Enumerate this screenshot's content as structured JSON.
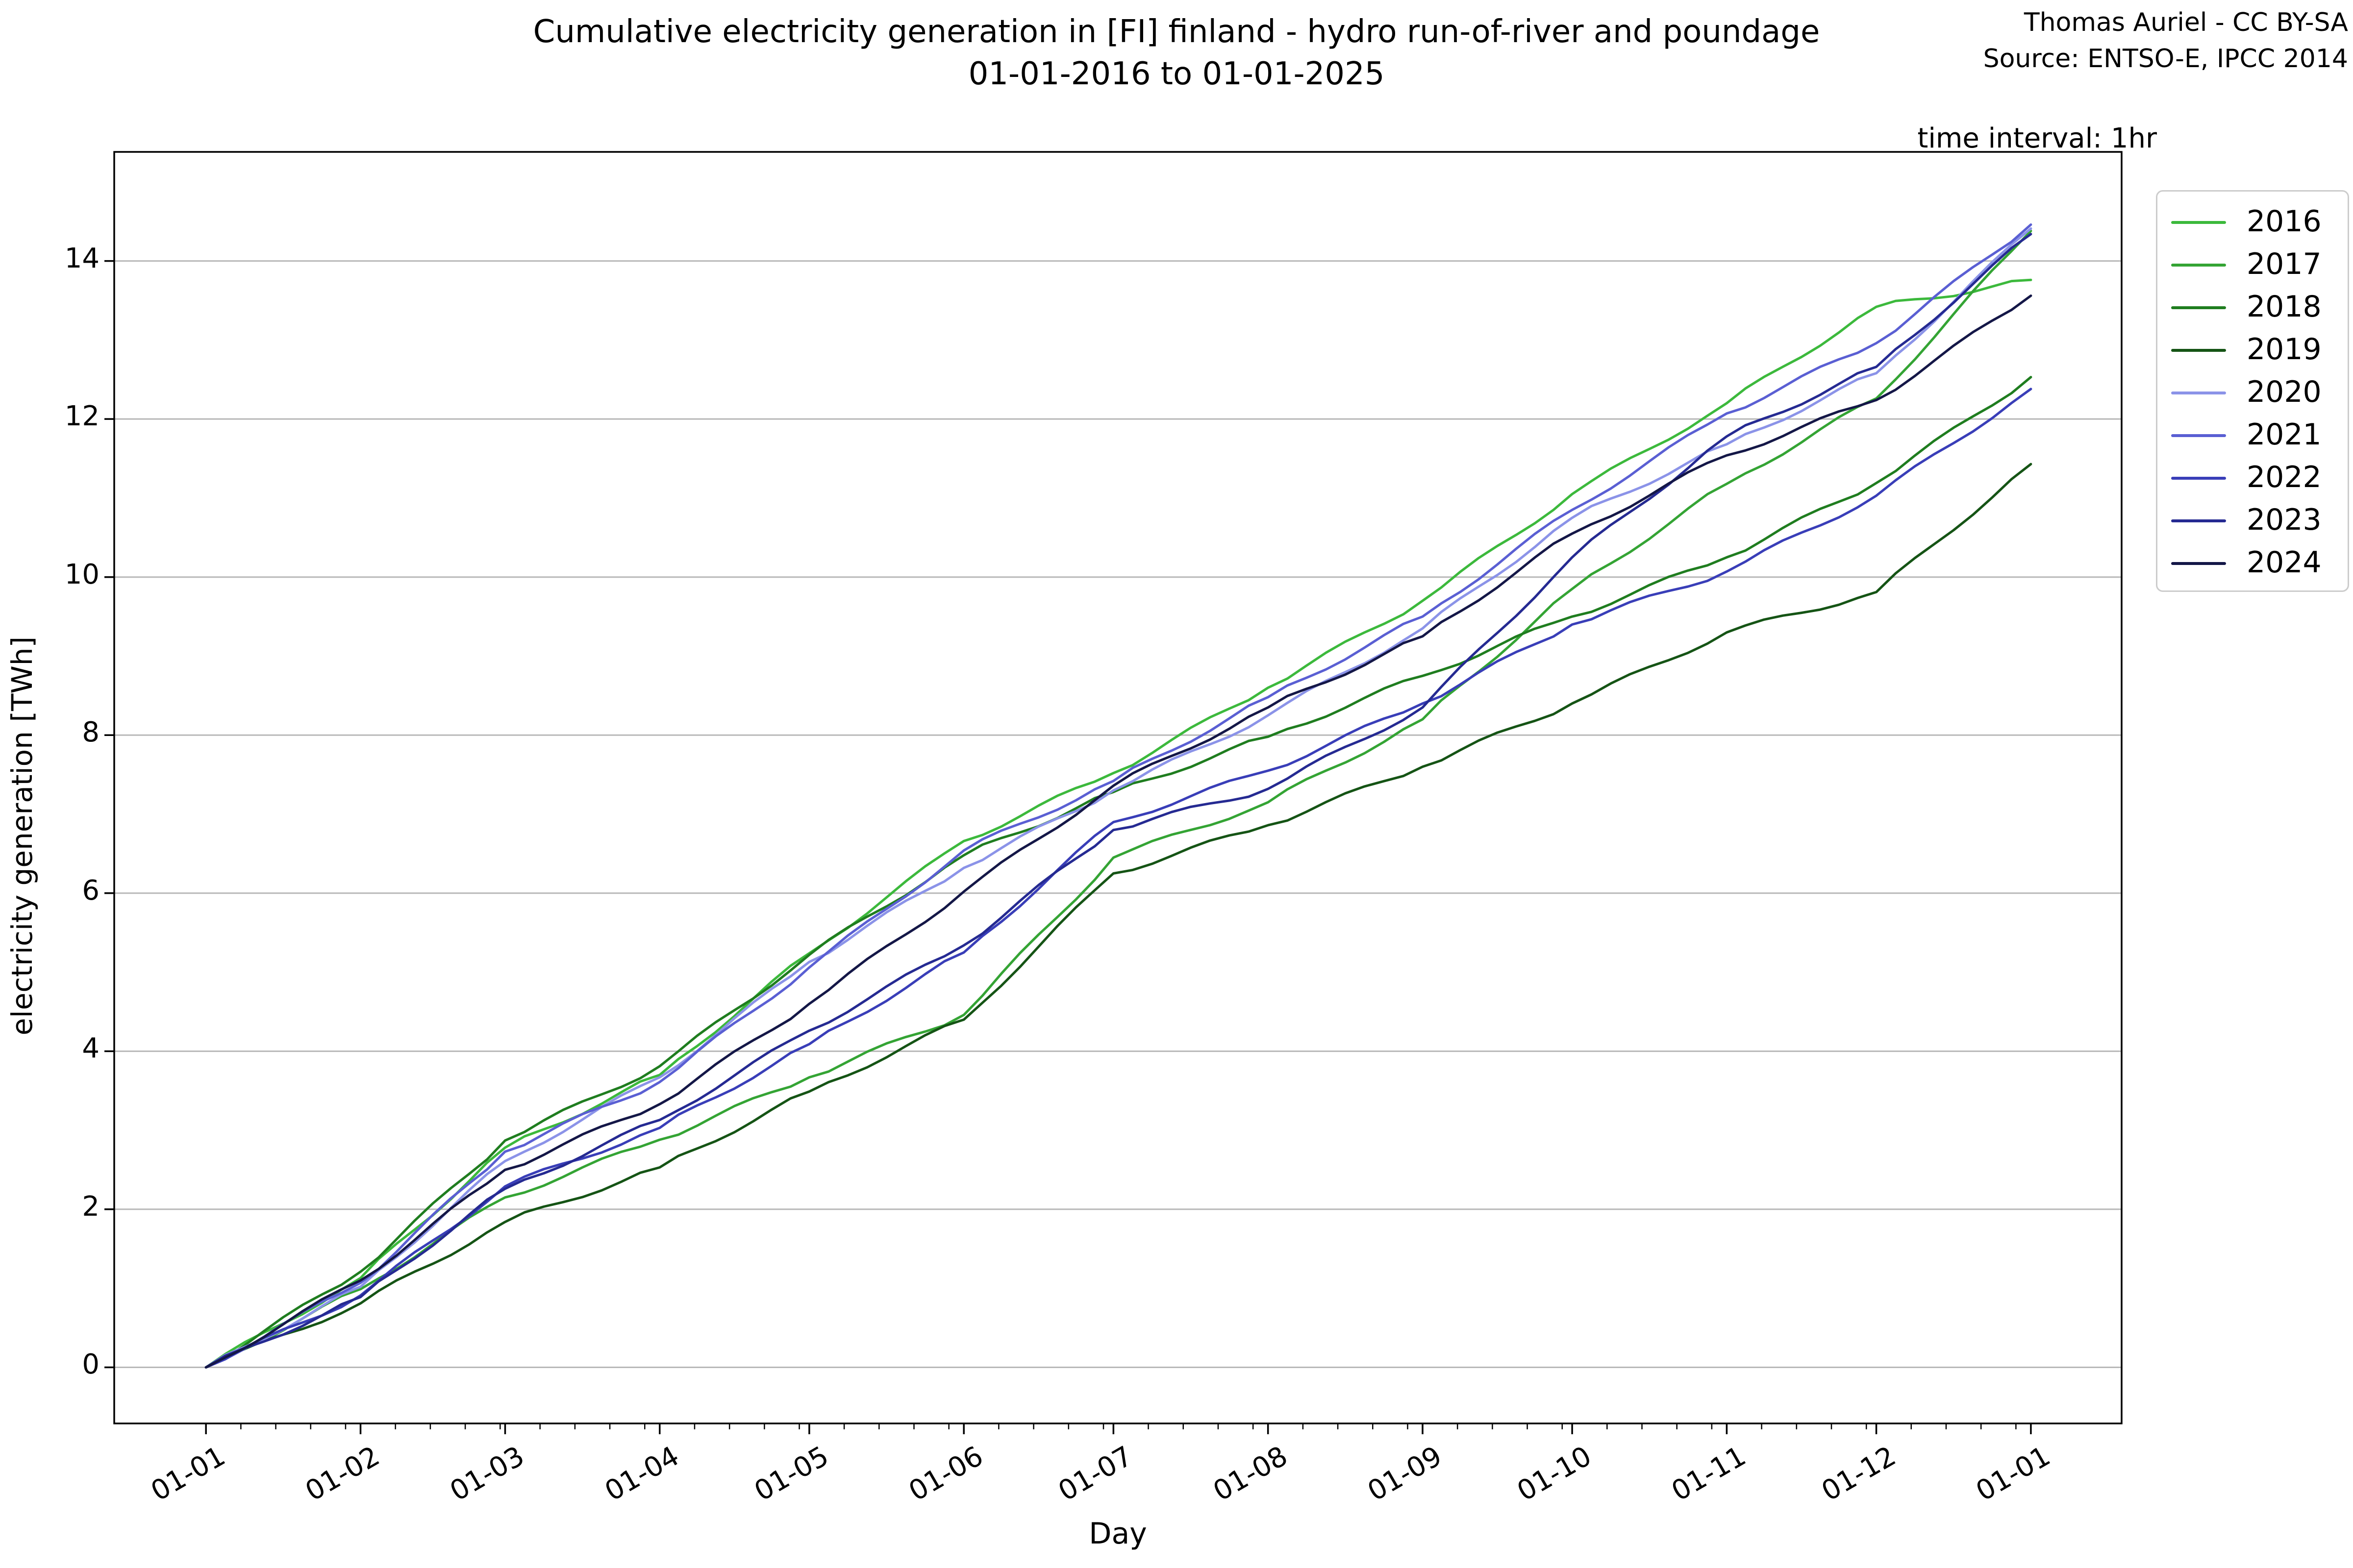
{
  "header": {
    "title": "Cumulative electricity generation in [FI] finland - hydro run-of-river and poundage",
    "subtitle": "01-01-2016 to 01-01-2025",
    "credit_line1": "Thomas Auriel - CC BY-SA",
    "credit_line2": "Source: ENTSO-E, IPCC 2014",
    "note": "time interval: 1hr"
  },
  "chart_data": {
    "type": "line",
    "title": "Cumulative electricity generation in [FI] finland - hydro run-of-river and poundage",
    "subtitle": "01-01-2016 to 01-01-2025",
    "xlabel": "Day",
    "ylabel": "electricity generation [TWh]",
    "x_tick_labels": [
      "01-01",
      "01-02",
      "01-03",
      "01-04",
      "01-05",
      "01-06",
      "01-07",
      "01-08",
      "01-09",
      "01-10",
      "01-11",
      "01-12",
      "01-01"
    ],
    "x_tick_days": [
      0,
      31,
      60,
      91,
      121,
      152,
      182,
      213,
      244,
      274,
      305,
      335,
      366
    ],
    "y_ticks": [
      0,
      2,
      4,
      6,
      8,
      10,
      12,
      14
    ],
    "ylim": [
      -0.71,
      15.38
    ],
    "grid": "horizontal",
    "grid_color": "#b8b8b8",
    "legend_position": "outside-right",
    "legend_title": "",
    "units": "TWh",
    "series": [
      {
        "name": "2016",
        "color": "#3cb93c",
        "values": [
          0,
          1.13,
          2.78,
          3.7,
          5.24,
          6.66,
          7.52,
          8.6,
          9.7,
          11.05,
          12.2,
          13.42,
          13.76
        ]
      },
      {
        "name": "2017",
        "color": "#34a434",
        "values": [
          0,
          0.99,
          2.15,
          2.88,
          3.67,
          4.46,
          6.45,
          7.15,
          8.2,
          9.85,
          11.18,
          12.26,
          14.38
        ]
      },
      {
        "name": "2018",
        "color": "#1f7d1f",
        "values": [
          0,
          1.21,
          2.87,
          3.81,
          5.22,
          6.48,
          7.28,
          7.98,
          8.75,
          9.5,
          10.25,
          11.19,
          12.53
        ]
      },
      {
        "name": "2019",
        "color": "#155415",
        "values": [
          0,
          0.81,
          1.84,
          2.53,
          3.49,
          4.4,
          6.25,
          6.86,
          7.6,
          8.4,
          9.3,
          9.81,
          11.43
        ]
      },
      {
        "name": "2020",
        "color": "#8b93e8",
        "values": [
          0,
          1.02,
          2.61,
          3.67,
          5.13,
          6.32,
          7.3,
          8.25,
          9.35,
          10.75,
          11.68,
          12.58,
          14.41
        ]
      },
      {
        "name": "2021",
        "color": "#5a5fd3",
        "values": [
          0,
          1.07,
          2.73,
          3.61,
          5.06,
          6.54,
          7.42,
          8.48,
          9.5,
          10.85,
          12.07,
          12.96,
          14.46
        ]
      },
      {
        "name": "2022",
        "color": "#393eb8",
        "values": [
          0,
          0.91,
          2.29,
          3.03,
          4.09,
          5.25,
          6.9,
          7.55,
          8.4,
          9.4,
          10.07,
          11.03,
          12.38
        ]
      },
      {
        "name": "2023",
        "color": "#252a92",
        "values": [
          0,
          0.89,
          2.26,
          3.13,
          4.26,
          5.34,
          6.8,
          7.32,
          8.35,
          10.25,
          11.78,
          12.66,
          14.34
        ]
      },
      {
        "name": "2024",
        "color": "#141747",
        "values": [
          0,
          1.1,
          2.5,
          3.33,
          4.6,
          6.02,
          7.36,
          8.35,
          9.25,
          10.55,
          11.54,
          12.24,
          13.56
        ]
      }
    ]
  }
}
